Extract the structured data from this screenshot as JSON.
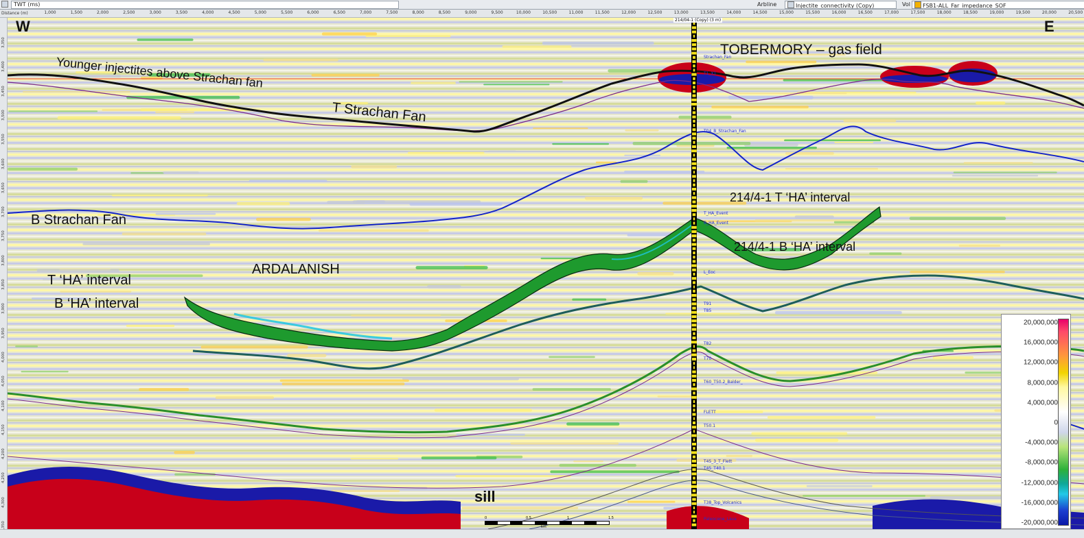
{
  "toolbar": {
    "domain_field": "TWT (ms)",
    "line_label": "Arbline",
    "line_name": "Injectite_connectivity (Copy)",
    "vol_label": "Vol",
    "volume_name": "FSB1-ALL_Far_impedance_SOF"
  },
  "x_axis": {
    "name": "Distance (m)",
    "ticks": [
      "1,000",
      "1,500",
      "2,000",
      "2,500",
      "3,000",
      "3,500",
      "4,000",
      "4,500",
      "5,000",
      "5,500",
      "6,000",
      "6,500",
      "7,000",
      "7,500",
      "8,000",
      "8,500",
      "9,000",
      "9,500",
      "10,000",
      "10,500",
      "11,000",
      "11,500",
      "12,000",
      "12,500",
      "13,000",
      "13,500",
      "14,000",
      "14,500",
      "15,000",
      "15,500",
      "16,000",
      "16,500",
      "17,000",
      "17,500",
      "18,000",
      "18,500",
      "19,000",
      "19,500",
      "20,000",
      "20,500"
    ]
  },
  "y_axis": {
    "name": "TWT (ms)",
    "ticks": [
      "3,350",
      "3,400",
      "3,450",
      "3,500",
      "3,550",
      "3,600",
      "3,650",
      "3,700",
      "3,750",
      "3,800",
      "3,850",
      "3,900",
      "3,950",
      "4,000",
      "4,050",
      "4,100",
      "4,150",
      "4,200",
      "4,250",
      "4,300",
      "4,350"
    ]
  },
  "annotations": {
    "west": "W",
    "east": "E",
    "younger_injectites": "Younger injectites above Strachan fan",
    "t_strachan": "T Strachan Fan",
    "b_strachan": "B Strachan Fan",
    "tobermory": "TOBERMORY – gas field",
    "ardalanish": "ARDALANISH",
    "t_ha": "T ‘HA’ interval",
    "b_ha": "B ‘HA’ interval",
    "t_ha_well": "214/4-1 T ‘HA’ interval",
    "b_ha_well": "214/4-1 B ‘HA’ interval",
    "sill": "sill"
  },
  "well": {
    "name": "214/04-1 (Copy) (3 m)",
    "markers": [
      {
        "label": "Strachan_Fan"
      },
      {
        "label": "T1_X1"
      },
      {
        "label": "T04_B_Strachan_Fan"
      },
      {
        "label": "T_HA_Event"
      },
      {
        "label": "B_HA_Event"
      },
      {
        "label": "L_Eoc"
      },
      {
        "label": "T91"
      },
      {
        "label": "T85"
      },
      {
        "label": "T82"
      },
      {
        "label": "T70"
      },
      {
        "label": "T60_T50.2_Balder_"
      },
      {
        "label": "FLETT"
      },
      {
        "label": "T50.1"
      },
      {
        "label": "T45_3_T_Flett"
      },
      {
        "label": "T45_T40.1"
      },
      {
        "label": "T38_Top_Volcanics"
      },
      {
        "label": "Paleocene_Lava"
      }
    ]
  },
  "colorbar": {
    "values": [
      "20,000,000",
      "16,000,000",
      "12,000,000",
      "8,000,000",
      "4,000,000",
      "0",
      "-4,000,000",
      "-8,000,000",
      "-12,000,000",
      "-16,000,000",
      "-20,000,000"
    ]
  },
  "scalebar": {
    "unit": "km",
    "ticks": [
      "0",
      "0.5",
      "1",
      "1.5"
    ]
  },
  "colors": {
    "strachan_top": "#111111",
    "strachan_base": "#1424c8",
    "ha_interval": "#1e9a2e",
    "horizon_teal": "#1e5e5a",
    "horizon_purple": "#7a2a8a",
    "gas_red": "#c8001a",
    "gas_blue": "#1a1aa8"
  }
}
